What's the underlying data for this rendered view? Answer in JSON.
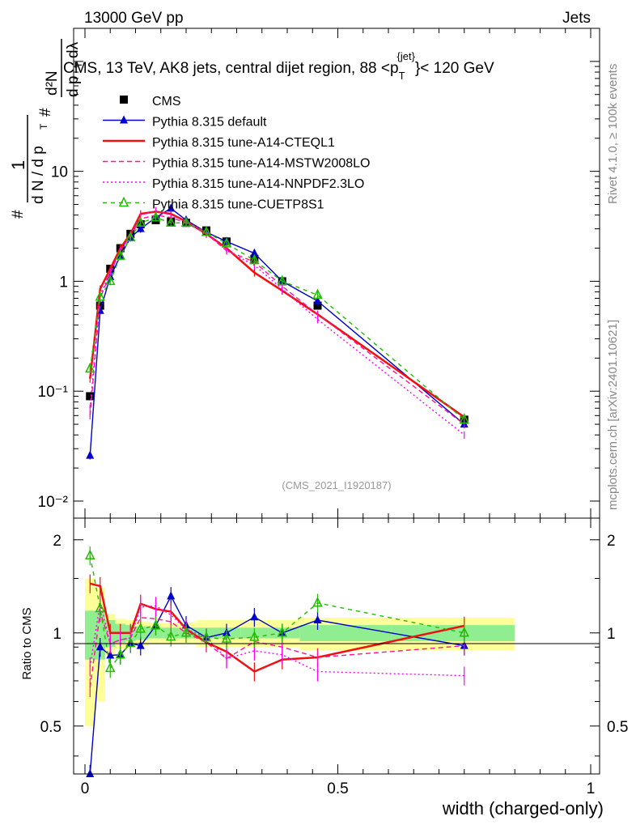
{
  "header": {
    "left": "13000 GeV pp",
    "right": "Jets"
  },
  "side": {
    "top": "Rivet 4.1.0, ≥ 100k events",
    "bottom": "mcplots.cern.ch [arXiv:2401.10621]"
  },
  "watermark": "(CMS_2021_I1920187)",
  "colors": {
    "cms": "#000000",
    "pythia_default": "#0000cc",
    "cteql1": "#ee1111",
    "mstw": "#ff1493",
    "nnpdf": "#ff00ff",
    "cuetp8s1": "#22bb00",
    "band_green": "#90ee90",
    "band_yellow": "#ffff99"
  },
  "chart_data": {
    "type": "line",
    "title": "CMS, 13 TeV, AK8 jets, central dijet region, 88 < p_T^{jet} < 120 GeV",
    "title_parts": {
      "main": "CMS, 13 TeV, AK8 jets, central dijet region, 88 <p",
      "sub": "T",
      "sup": "{jet}",
      "tail": "}< 120 GeV"
    },
    "ylabel": {
      "one": "1",
      "dN": "d N / d p",
      "T": "T",
      "hash": "#",
      "d2N": "d²N",
      "dpT": "d p",
      "dl": "dλ"
    },
    "xlabel": "width (charged-only)",
    "xlim": [
      0,
      1
    ],
    "ylim": [
      0.007,
      200
    ],
    "yscale": "log",
    "x_ticks": [
      "0",
      "0.5",
      "1"
    ],
    "y_ticks": [
      "10⁻²",
      "10⁻¹",
      "1",
      "10"
    ],
    "x": [
      0.01,
      0.03,
      0.05,
      0.07,
      0.09,
      0.11,
      0.14,
      0.17,
      0.2,
      0.24,
      0.28,
      0.335,
      0.39,
      0.46,
      0.75
    ],
    "series": [
      {
        "name": "CMS",
        "key": "cms",
        "marker": "square",
        "dash": "",
        "values": [
          0.09,
          0.6,
          1.3,
          2.0,
          2.7,
          3.3,
          3.6,
          3.5,
          3.4,
          2.9,
          2.3,
          1.6,
          1.0,
          0.6,
          0.055
        ]
      },
      {
        "name": "Pythia 8.315 default",
        "key": "pythia_default",
        "marker": "triangle",
        "dash": "",
        "values": [
          0.026,
          0.54,
          1.1,
          1.7,
          2.5,
          3.0,
          3.8,
          4.6,
          3.6,
          2.8,
          2.3,
          1.8,
          1.0,
          0.66,
          0.05
        ]
      },
      {
        "name": "Pythia 8.315 tune-A14-CTEQL1",
        "key": "cteql1",
        "marker": "none",
        "dash": "",
        "values": [
          0.13,
          0.85,
          1.3,
          2.0,
          2.7,
          4.1,
          4.3,
          4.1,
          3.5,
          2.7,
          2.0,
          1.2,
          0.82,
          0.5,
          0.058
        ]
      },
      {
        "name": "Pythia 8.315 tune-A14-MSTW2008LO",
        "key": "mstw",
        "marker": "none",
        "dash": "6,4",
        "values": [
          0.06,
          0.7,
          1.2,
          1.9,
          2.6,
          3.7,
          4.0,
          3.8,
          3.4,
          2.7,
          1.9,
          1.5,
          0.9,
          0.5,
          0.05
        ]
      },
      {
        "name": "Pythia 8.315 tune-A14-NNPDF2.3LO",
        "key": "nnpdf",
        "marker": "none",
        "dash": "2,3",
        "values": [
          0.07,
          0.75,
          1.2,
          1.9,
          2.6,
          4.0,
          4.4,
          4.0,
          3.5,
          2.8,
          1.9,
          1.4,
          0.85,
          0.45,
          0.04
        ]
      },
      {
        "name": "Pythia 8.315 tune-CUETP8S1",
        "key": "cuetp8s1",
        "marker": "triangle-open",
        "dash": "5,5",
        "values": [
          0.16,
          0.72,
          1.0,
          1.7,
          2.5,
          3.4,
          3.8,
          3.4,
          3.4,
          2.8,
          2.2,
          1.55,
          1.0,
          0.75,
          0.055
        ]
      }
    ],
    "ratio": {
      "ylabel": "Ratio to CMS",
      "ylim": [
        0.35,
        2.35
      ],
      "ticks": [
        "0.5",
        "1",
        "2"
      ],
      "tick_values": [
        0.5,
        1,
        2
      ],
      "band_inner": [
        0.18,
        0.18,
        0.1,
        0.07,
        0.06,
        0.05,
        0.04,
        0.04,
        0.04,
        0.04,
        0.04,
        0.04,
        0.04,
        0.06,
        0.06
      ],
      "band_outer": [
        0.5,
        0.4,
        0.15,
        0.11,
        0.1,
        0.09,
        0.08,
        0.08,
        0.08,
        0.1,
        0.1,
        0.1,
        0.1,
        0.12,
        0.12
      ]
    }
  }
}
